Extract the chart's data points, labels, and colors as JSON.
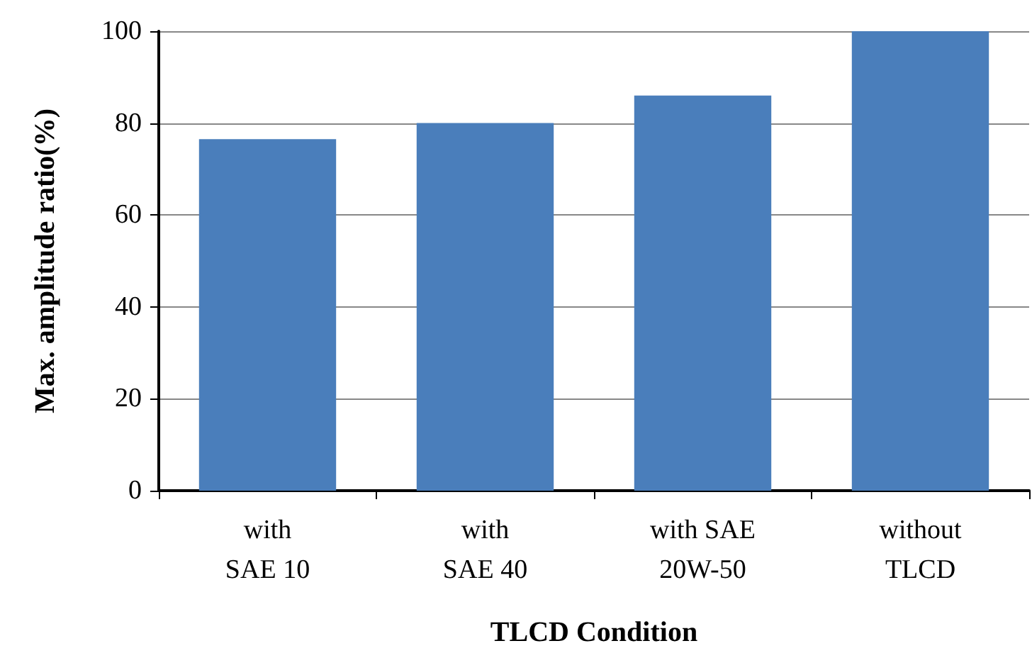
{
  "chart_data": {
    "type": "bar",
    "xlabel": "TLCD Condition",
    "ylabel": "Max. amplitude ratio(%)",
    "categories": [
      "with\nSAE 10",
      "with\nSAE 40",
      "with SAE\n20W-50",
      "without\nTLCD"
    ],
    "values": [
      76.5,
      80,
      86,
      100
    ],
    "color": "#4a7ebb",
    "ylim": [
      0,
      100
    ],
    "yticks": [
      0,
      20,
      40,
      60,
      80,
      100
    ],
    "grid": "y"
  }
}
